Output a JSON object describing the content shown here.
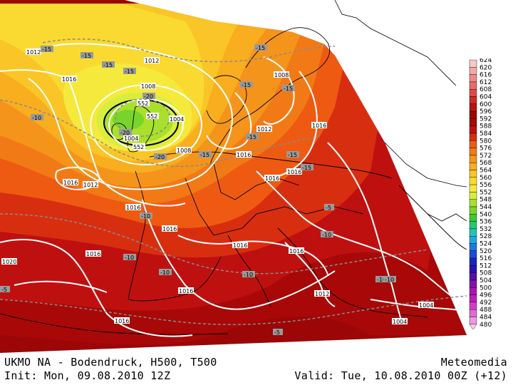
{
  "footer": {
    "title": "UKMO NA - Bodendruck, H500, T500",
    "brand": "Meteomedia",
    "init": "Init: Mon, 09.08.2010 12Z",
    "valid": "Valid: Tue, 10.08.2010 00Z (+12)"
  },
  "legend": {
    "levels": [
      624,
      620,
      616,
      612,
      608,
      604,
      600,
      596,
      592,
      588,
      584,
      580,
      576,
      572,
      568,
      564,
      560,
      556,
      552,
      548,
      544,
      540,
      536,
      532,
      528,
      524,
      520,
      516,
      512,
      508,
      504,
      500,
      496,
      492,
      488,
      484,
      480
    ],
    "colors": [
      "#f7c9c9",
      "#f4a9a9",
      "#ef8a8a",
      "#e96a6a",
      "#de4a4a",
      "#d02a2a",
      "#b81414",
      "#9c0606",
      "#a80808",
      "#bf1010",
      "#d82e10",
      "#ee5a12",
      "#f27a16",
      "#f5941a",
      "#f8ae1e",
      "#fac526",
      "#fada30",
      "#f5ea3c",
      "#d8ee3c",
      "#a8e02c",
      "#78d42a",
      "#3ccc2a",
      "#28c870",
      "#22c4b4",
      "#1ea8e0",
      "#1a7ae0",
      "#1a4cd8",
      "#1a24c4",
      "#2a10b0",
      "#5a10a8",
      "#8414a8",
      "#a418b0",
      "#c01cb8",
      "#d23cc4",
      "#e26ad4",
      "#ee9ae2",
      "#f6cdf0"
    ]
  },
  "map": {
    "bands": [
      {
        "level": 596,
        "color": "#9c0606"
      },
      {
        "level": 592,
        "color": "#a80808"
      },
      {
        "level": 588,
        "color": "#bf1010"
      },
      {
        "level": 584,
        "color": "#d82e10"
      },
      {
        "level": 580,
        "color": "#ee5a12"
      },
      {
        "level": 576,
        "color": "#f27a16"
      },
      {
        "level": 572,
        "color": "#f5941a"
      },
      {
        "level": 568,
        "color": "#f8ae1e"
      },
      {
        "level": 564,
        "color": "#fac526"
      },
      {
        "level": 560,
        "color": "#fada30"
      },
      {
        "level": 556,
        "color": "#f5ea3c"
      },
      {
        "level": 552,
        "color": "#d8ee3c"
      },
      {
        "level": 548,
        "color": "#a8e02c"
      },
      {
        "level": 544,
        "color": "#78d42a"
      }
    ],
    "isobar_labels": [
      "1012",
      "1016",
      "1016",
      "1016",
      "1012",
      "1012",
      "1008",
      "1004",
      "1004",
      "1008",
      "1008",
      "1012",
      "1016",
      "1016",
      "1016",
      "1016",
      "1016",
      "1020",
      "1016",
      "1016",
      "1016",
      "1012",
      "1004",
      "1004",
      "1016",
      "1016"
    ],
    "h500_labels": [
      "552",
      "552",
      "552"
    ],
    "temp_labels": [
      "-15",
      "-15",
      "-15",
      "-15",
      "-20",
      "-20",
      "-20",
      "-10",
      "-15",
      "-15",
      "-15",
      "-15",
      "-15",
      "-15",
      "-15",
      "-10",
      "-10",
      "-10",
      "-10",
      "-10",
      "-10",
      "-5",
      "-5",
      "-10",
      "-5"
    ]
  }
}
